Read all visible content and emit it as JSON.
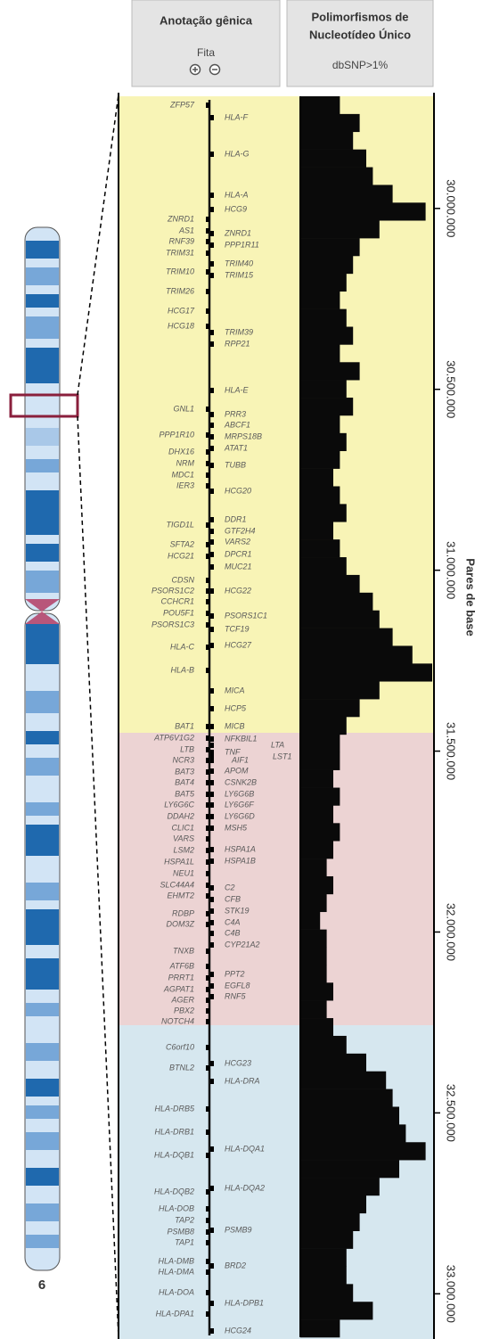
{
  "header": {
    "gene_annotation": {
      "title": "Anotação gênica",
      "strand": "Fita"
    },
    "snp": {
      "title_lines": [
        "Polimorfismos de",
        "Nucleotídeo Único"
      ],
      "subtitle": "dbSNP>1%"
    }
  },
  "chromosome": {
    "label": "6"
  },
  "genes": {
    "left": [
      "ZFP57",
      "ZNRD1",
      "AS1",
      "RNF39",
      "TRIM31",
      "TRIM10",
      "TRIM26",
      "HCG17",
      "HCG18",
      "GNL1",
      "PPP1R10",
      "DHX16",
      "NRM",
      "MDC1",
      "IER3",
      "TIGD1L",
      "SFTA2",
      "HCG21",
      "CDSN",
      "PSORS1C2",
      "CCHCR1",
      "POU5F1",
      "PSORS1C3",
      "HLA-C",
      "HLA-B",
      "BAT1",
      "ATP6V1G2",
      "LTB",
      "NCR3",
      "BAT3",
      "BAT4",
      "BAT5",
      "LY6G6C",
      "DDAH2",
      "CLIC1",
      "VARS",
      "LSM2",
      "HSPA1L",
      "NEU1",
      "SLC44A4",
      "EHMT2",
      "RDBP",
      "DOM3Z",
      "TNXB",
      "ATF6B",
      "PRRT1",
      "AGPAT1",
      "AGER",
      "PBX2",
      "NOTCH4",
      "C6orf10",
      "BTNL2",
      "HLA-DRB5",
      "HLA-DRB1",
      "HLA-DQB1",
      "HLA-DQB2",
      "HLA-DOB",
      "TAP2",
      "PSMB8",
      "TAP1",
      "HLA-DMB",
      "HLA-DMA",
      "HLA-DOA",
      "HLA-DPA1"
    ],
    "right": [
      "HLA-F",
      "HLA-G",
      "HLA-A",
      "HCG9",
      "ZNRD1",
      "PPP1R11",
      "TRIM40",
      "TRIM15",
      "TRIM39",
      "RPP21",
      "HLA-E",
      "PRR3",
      "ABCF1",
      "MRPS18B",
      "ATAT1",
      "TUBB",
      "HCG20",
      "DDR1",
      "GTF2H4",
      "VARS2",
      "DPCR1",
      "MUC21",
      "HCG22",
      "PSORS1C1",
      "TCF19",
      "HCG27",
      "MICA",
      "HCP5",
      "MICB",
      "NFKBIL1",
      "LTA",
      "TNF",
      "LST1",
      "AIF1",
      "APOM",
      "CSNK2B",
      "LY6G6B",
      "LY6G6F",
      "LY6G6D",
      "MSH5",
      "HSPA1A",
      "HSPA1B",
      "C2",
      "CFB",
      "STK19",
      "C4A",
      "C4B",
      "CYP21A2",
      "PPT2",
      "EGFL8",
      "RNF5",
      "HCG23",
      "HLA-DRA",
      "HLA-DQA1",
      "HLA-DQA2",
      "PSMB9",
      "BRD2",
      "HLA-DPB1",
      "HCG24"
    ]
  },
  "snp": {
    "values": [
      30,
      45,
      40,
      50,
      55,
      70,
      95,
      60,
      45,
      40,
      35,
      30,
      35,
      40,
      30,
      45,
      35,
      40,
      30,
      35,
      30,
      25,
      30,
      35,
      25,
      30,
      35,
      45,
      55,
      60,
      70,
      85,
      100,
      60,
      45,
      35,
      30,
      30,
      25,
      30,
      25,
      30,
      25,
      20,
      25,
      20,
      15,
      20,
      20,
      20,
      25,
      20,
      25,
      35,
      50,
      65,
      70,
      75,
      80,
      95,
      75,
      60,
      50,
      45,
      40,
      35,
      35,
      40,
      55,
      30
    ]
  },
  "axis": {
    "title": "Pares de base",
    "ylim": [
      29690000,
      33120000
    ],
    "yticks": [
      {
        "value": 30000000,
        "label": "30.000.000"
      },
      {
        "value": 30500000,
        "label": "30.500.000"
      },
      {
        "value": 31000000,
        "label": "31.000.000"
      },
      {
        "value": 31500000,
        "label": "31.500.000"
      },
      {
        "value": 32000000,
        "label": "32.000.000"
      },
      {
        "value": 32500000,
        "label": "32.500.000"
      },
      {
        "value": 33000000,
        "label": "33.000.000"
      }
    ]
  }
}
